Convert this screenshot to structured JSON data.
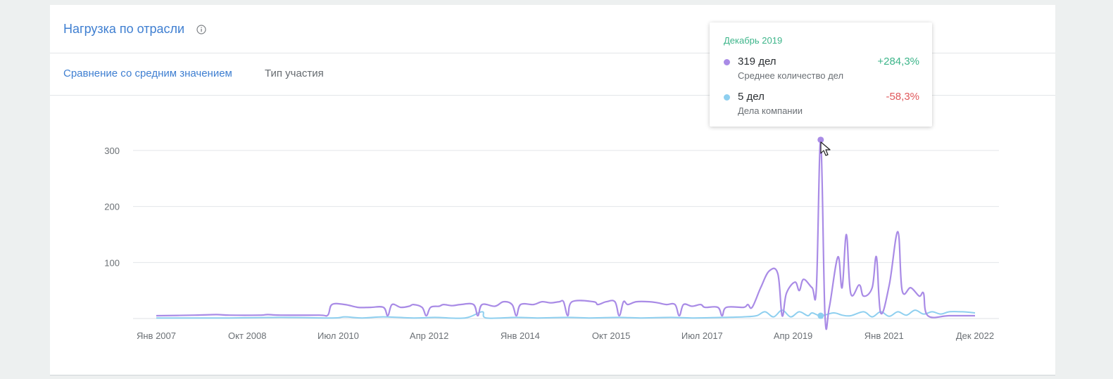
{
  "header": {
    "title": "Нагрузка по отрасли"
  },
  "tabs": [
    {
      "label": "Сравнение со средним значением",
      "active": true
    },
    {
      "label": "Тип участия",
      "active": false
    }
  ],
  "tooltip": {
    "date": "Декабрь 2019",
    "rows": [
      {
        "value": "319 дел",
        "label": "Среднее количество дел",
        "change": "+284,3%",
        "dot_color": "#a98be6",
        "change_color": "#3db58a"
      },
      {
        "value": "5 дел",
        "label": "Дела компании",
        "change": "-58,3%",
        "dot_color": "#8ecfef",
        "change_color": "#e0585b"
      }
    ]
  },
  "colors": {
    "accent": "#3f7fd1",
    "series_avg": "#a98be6",
    "series_company": "#8ecfef"
  },
  "chart_data": {
    "type": "line",
    "ylim": [
      0,
      300
    ],
    "yticks": [
      100,
      200,
      300
    ],
    "xtick_labels": [
      "Янв 2007",
      "Окт 2008",
      "Июл 2010",
      "Апр 2012",
      "Янв 2014",
      "Окт 2015",
      "Июл 2017",
      "Апр 2019",
      "Янв 2021",
      "Дек 2022"
    ],
    "xlim": [
      "2007-01",
      "2022-12"
    ],
    "grid": true,
    "highlight": {
      "x": "2019-12",
      "avg": 319,
      "company": 5
    },
    "series": [
      {
        "id": "avg",
        "points": [
          [
            "2007-01",
            5
          ],
          [
            "2007-10",
            6
          ],
          [
            "2008-03",
            7
          ],
          [
            "2008-06",
            6
          ],
          [
            "2009-01",
            6
          ],
          [
            "2009-03",
            7
          ],
          [
            "2009-06",
            6
          ],
          [
            "2010-03",
            6
          ],
          [
            "2010-05",
            6
          ],
          [
            "2010-06",
            25
          ],
          [
            "2010-09",
            25
          ],
          [
            "2010-12",
            20
          ],
          [
            "2011-03",
            20
          ],
          [
            "2011-06",
            20
          ],
          [
            "2011-07",
            5
          ],
          [
            "2011-08",
            25
          ],
          [
            "2011-10",
            20
          ],
          [
            "2011-12",
            22
          ],
          [
            "2012-01",
            25
          ],
          [
            "2012-03",
            20
          ],
          [
            "2012-04",
            5
          ],
          [
            "2012-05",
            20
          ],
          [
            "2012-07",
            22
          ],
          [
            "2012-08",
            25
          ],
          [
            "2012-10",
            23
          ],
          [
            "2012-12",
            25
          ],
          [
            "2013-03",
            25
          ],
          [
            "2013-04",
            5
          ],
          [
            "2013-05",
            25
          ],
          [
            "2013-08",
            22
          ],
          [
            "2013-10",
            30
          ],
          [
            "2013-12",
            25
          ],
          [
            "2014-01",
            5
          ],
          [
            "2014-02",
            25
          ],
          [
            "2014-05",
            25
          ],
          [
            "2014-07",
            30
          ],
          [
            "2014-09",
            28
          ],
          [
            "2014-11",
            30
          ],
          [
            "2014-12",
            30
          ],
          [
            "2015-01",
            5
          ],
          [
            "2015-02",
            30
          ],
          [
            "2015-07",
            30
          ],
          [
            "2015-08",
            25
          ],
          [
            "2015-10",
            30
          ],
          [
            "2015-12",
            30
          ],
          [
            "2016-01",
            5
          ],
          [
            "2016-02",
            30
          ],
          [
            "2016-03",
            25
          ],
          [
            "2016-05",
            30
          ],
          [
            "2016-08",
            30
          ],
          [
            "2016-10",
            28
          ],
          [
            "2016-12",
            25
          ],
          [
            "2017-02",
            25
          ],
          [
            "2017-03",
            5
          ],
          [
            "2017-04",
            25
          ],
          [
            "2017-06",
            22
          ],
          [
            "2017-08",
            25
          ],
          [
            "2017-09",
            20
          ],
          [
            "2017-12",
            20
          ],
          [
            "2018-01",
            5
          ],
          [
            "2018-02",
            20
          ],
          [
            "2018-06",
            20
          ],
          [
            "2018-07",
            25
          ],
          [
            "2018-08",
            20
          ],
          [
            "2018-10",
            55
          ],
          [
            "2018-12",
            85
          ],
          [
            "2019-02",
            80
          ],
          [
            "2019-03",
            5
          ],
          [
            "2019-04",
            45
          ],
          [
            "2019-06",
            65
          ],
          [
            "2019-07",
            50
          ],
          [
            "2019-08",
            70
          ],
          [
            "2019-10",
            55
          ],
          [
            "2019-11",
            55
          ],
          [
            "2019-12",
            319
          ],
          [
            "2020-01",
            5
          ],
          [
            "2020-02",
            20
          ],
          [
            "2020-04",
            110
          ],
          [
            "2020-05",
            55
          ],
          [
            "2020-06",
            150
          ],
          [
            "2020-07",
            45
          ],
          [
            "2020-09",
            60
          ],
          [
            "2020-10",
            40
          ],
          [
            "2020-12",
            55
          ],
          [
            "2021-01",
            110
          ],
          [
            "2021-02",
            10
          ],
          [
            "2021-04",
            60
          ],
          [
            "2021-06",
            155
          ],
          [
            "2021-07",
            50
          ],
          [
            "2021-09",
            55
          ],
          [
            "2021-11",
            40
          ],
          [
            "2021-12",
            45
          ],
          [
            "2022-01",
            5
          ],
          [
            "2022-06",
            5
          ],
          [
            "2022-12",
            5
          ]
        ]
      },
      {
        "id": "company",
        "points": [
          [
            "2007-01",
            1
          ],
          [
            "2008-06",
            1
          ],
          [
            "2009-06",
            2
          ],
          [
            "2010-06",
            1
          ],
          [
            "2010-09",
            3
          ],
          [
            "2011-01",
            1
          ],
          [
            "2011-06",
            3
          ],
          [
            "2012-01",
            1
          ],
          [
            "2012-06",
            2
          ],
          [
            "2013-01",
            1
          ],
          [
            "2013-05",
            12
          ],
          [
            "2013-06",
            1
          ],
          [
            "2014-01",
            2
          ],
          [
            "2014-06",
            1
          ],
          [
            "2015-01",
            2
          ],
          [
            "2015-06",
            1
          ],
          [
            "2016-01",
            2
          ],
          [
            "2016-06",
            1
          ],
          [
            "2017-01",
            2
          ],
          [
            "2017-06",
            1
          ],
          [
            "2018-01",
            2
          ],
          [
            "2018-06",
            3
          ],
          [
            "2018-09",
            5
          ],
          [
            "2018-11",
            12
          ],
          [
            "2019-01",
            3
          ],
          [
            "2019-03",
            15
          ],
          [
            "2019-05",
            3
          ],
          [
            "2019-07",
            12
          ],
          [
            "2019-09",
            5
          ],
          [
            "2019-10",
            10
          ],
          [
            "2019-12",
            5
          ],
          [
            "2020-03",
            10
          ],
          [
            "2020-05",
            6
          ],
          [
            "2020-07",
            5
          ],
          [
            "2020-10",
            12
          ],
          [
            "2020-12",
            3
          ],
          [
            "2021-02",
            12
          ],
          [
            "2021-04",
            4
          ],
          [
            "2021-06",
            12
          ],
          [
            "2021-08",
            6
          ],
          [
            "2021-10",
            15
          ],
          [
            "2021-12",
            8
          ],
          [
            "2022-02",
            12
          ],
          [
            "2022-04",
            8
          ],
          [
            "2022-06",
            12
          ],
          [
            "2022-09",
            12
          ],
          [
            "2022-12",
            10
          ]
        ]
      }
    ]
  }
}
